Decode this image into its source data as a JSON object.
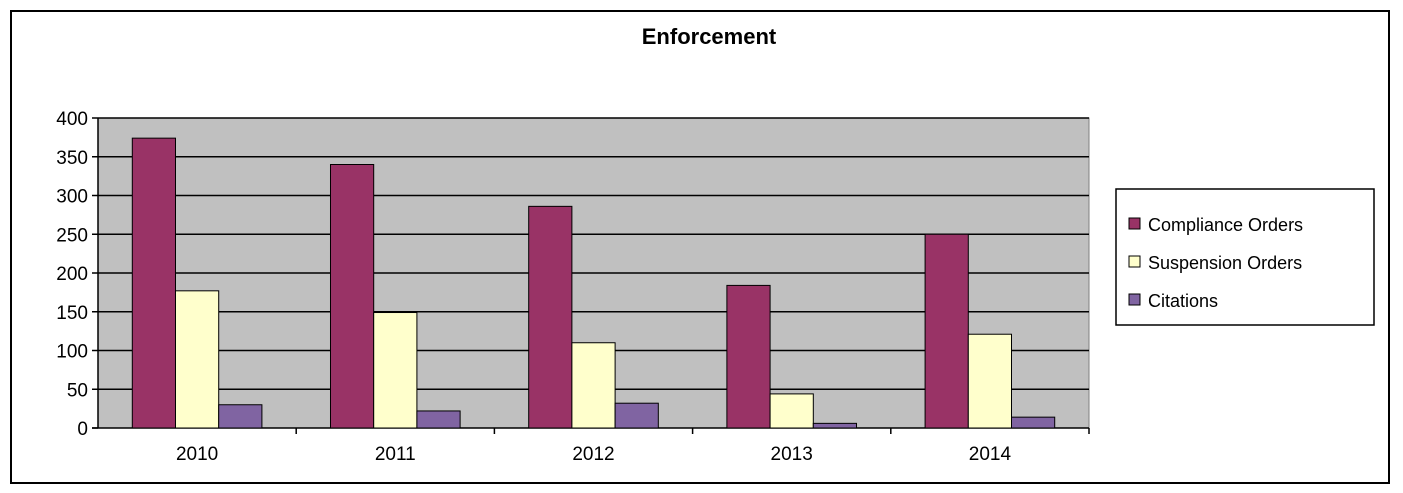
{
  "colors": {
    "plot_background": "#c0c0c0",
    "series": [
      "#993366",
      "#ffffcc",
      "#8064a2"
    ]
  },
  "chart_data": {
    "type": "bar",
    "title": "Enforcement",
    "xlabel": "",
    "ylabel": "",
    "categories": [
      "2010",
      "2011",
      "2012",
      "2013",
      "2014"
    ],
    "series": [
      {
        "name": "Compliance Orders",
        "values": [
          374,
          340,
          286,
          184,
          250
        ]
      },
      {
        "name": "Suspension Orders",
        "values": [
          177,
          149,
          110,
          44,
          121
        ]
      },
      {
        "name": "Citations",
        "values": [
          30,
          22,
          32,
          6,
          14
        ]
      }
    ],
    "ylim": [
      0,
      400
    ],
    "yticks": [
      "0",
      "50",
      "100",
      "150",
      "200",
      "250",
      "300",
      "350",
      "400"
    ],
    "grid": true,
    "legend_position": "right"
  }
}
